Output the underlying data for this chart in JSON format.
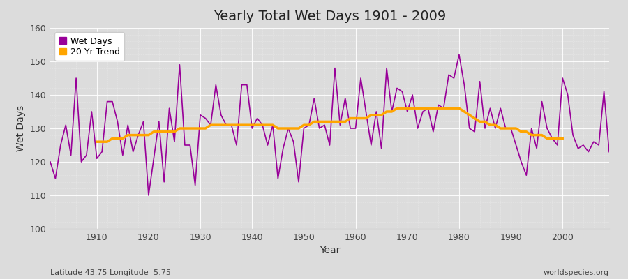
{
  "title": "Yearly Total Wet Days 1901 - 2009",
  "xlabel": "Year",
  "ylabel": "Wet Days",
  "subtitle": "Latitude 43.75 Longitude -5.75",
  "watermark": "worldspecies.org",
  "ylim": [
    100,
    160
  ],
  "bg_color": "#dcdcdc",
  "plot_bg_color": "#dcdcdc",
  "wet_days_color": "#990099",
  "trend_color": "#FFA500",
  "years": [
    1901,
    1902,
    1903,
    1904,
    1905,
    1906,
    1907,
    1908,
    1909,
    1910,
    1911,
    1912,
    1913,
    1914,
    1915,
    1916,
    1917,
    1918,
    1919,
    1920,
    1921,
    1922,
    1923,
    1924,
    1925,
    1926,
    1927,
    1928,
    1929,
    1930,
    1931,
    1932,
    1933,
    1934,
    1935,
    1936,
    1937,
    1938,
    1939,
    1940,
    1941,
    1942,
    1943,
    1944,
    1945,
    1946,
    1947,
    1948,
    1949,
    1950,
    1951,
    1952,
    1953,
    1954,
    1955,
    1956,
    1957,
    1958,
    1959,
    1960,
    1961,
    1962,
    1963,
    1964,
    1965,
    1966,
    1967,
    1968,
    1969,
    1970,
    1971,
    1972,
    1973,
    1974,
    1975,
    1976,
    1977,
    1978,
    1979,
    1980,
    1981,
    1982,
    1983,
    1984,
    1985,
    1986,
    1987,
    1988,
    1989,
    1990,
    1991,
    1992,
    1993,
    1994,
    1995,
    1996,
    1997,
    1998,
    1999,
    2000,
    2001,
    2002,
    2003,
    2004,
    2005,
    2006,
    2007,
    2008,
    2009
  ],
  "wet_days": [
    120,
    115,
    125,
    131,
    122,
    145,
    120,
    122,
    135,
    121,
    123,
    138,
    138,
    132,
    122,
    131,
    123,
    128,
    132,
    110,
    121,
    132,
    114,
    136,
    126,
    149,
    125,
    125,
    113,
    134,
    133,
    131,
    143,
    134,
    131,
    131,
    125,
    143,
    143,
    130,
    133,
    131,
    125,
    131,
    115,
    124,
    130,
    126,
    114,
    130,
    131,
    139,
    130,
    131,
    125,
    148,
    131,
    139,
    130,
    130,
    145,
    135,
    125,
    135,
    124,
    148,
    135,
    142,
    141,
    135,
    140,
    130,
    135,
    136,
    129,
    137,
    136,
    146,
    145,
    152,
    143,
    130,
    129,
    144,
    130,
    136,
    130,
    136,
    130,
    130,
    125,
    120,
    116,
    130,
    124,
    138,
    130,
    127,
    125,
    145,
    140,
    128,
    124,
    125,
    123,
    126,
    125,
    141,
    123
  ],
  "trend": [
    null,
    null,
    null,
    null,
    null,
    null,
    null,
    null,
    null,
    126,
    126,
    126,
    127,
    127,
    127,
    128,
    128,
    128,
    128,
    128,
    129,
    129,
    129,
    129,
    129,
    130,
    130,
    130,
    130,
    130,
    130,
    131,
    131,
    131,
    131,
    131,
    131,
    131,
    131,
    131,
    131,
    131,
    131,
    131,
    130,
    130,
    130,
    130,
    130,
    131,
    131,
    132,
    132,
    132,
    132,
    132,
    132,
    132,
    133,
    133,
    133,
    133,
    134,
    134,
    134,
    135,
    135,
    136,
    136,
    136,
    136,
    136,
    136,
    136,
    136,
    136,
    136,
    136,
    136,
    136,
    135,
    134,
    133,
    132,
    132,
    131,
    131,
    130,
    130,
    130,
    130,
    129,
    129,
    128,
    128,
    128,
    127,
    127,
    127,
    127,
    null,
    null,
    null,
    null,
    null,
    null,
    null,
    null,
    null
  ]
}
